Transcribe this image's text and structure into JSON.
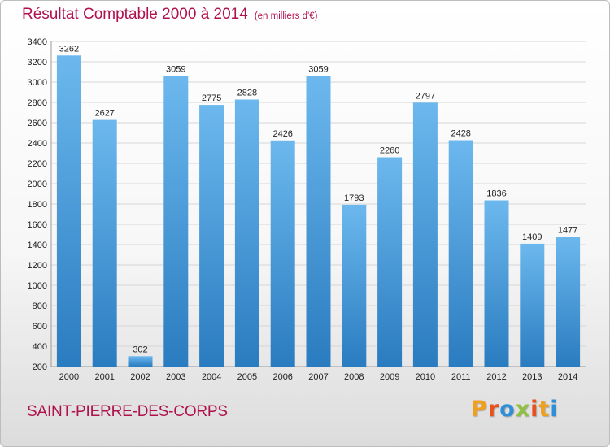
{
  "header": {
    "title": "Résultat Comptable 2000 à 2014",
    "subtitle": "(en milliers d'€)"
  },
  "footer": {
    "city": "SAINT-PIERRE-DES-CORPS",
    "logo": [
      "P",
      "r",
      "o",
      "x",
      "i",
      "t",
      "i"
    ],
    "logo_colors": [
      "#f0a020",
      "#e8501c",
      "#2f8ed8",
      "#90c040",
      "#e8501c",
      "#f0a020",
      "#2f8ed8"
    ]
  },
  "colors": {
    "bar_top": "#6cb8ee",
    "bar_bottom": "#2a7cc0",
    "grid": "#d6d6d6",
    "title": "#b0124e"
  },
  "chart_data": {
    "type": "bar",
    "title": "Résultat Comptable 2000 à 2014",
    "subtitle": "(en milliers d'€)",
    "categories": [
      "2000",
      "2001",
      "2002",
      "2003",
      "2004",
      "2005",
      "2006",
      "2007",
      "2008",
      "2009",
      "2010",
      "2011",
      "2012",
      "2013",
      "2014"
    ],
    "values": [
      3262,
      2627,
      302,
      3059,
      2775,
      2828,
      2426,
      3059,
      1793,
      2260,
      2797,
      2428,
      1836,
      1409,
      1477
    ],
    "ylim": [
      200,
      3400
    ],
    "yticks": [
      200,
      400,
      600,
      800,
      1000,
      1200,
      1400,
      1600,
      1800,
      2000,
      2200,
      2400,
      2600,
      2800,
      3000,
      3200,
      3400
    ],
    "grid": true,
    "legend": "none"
  }
}
